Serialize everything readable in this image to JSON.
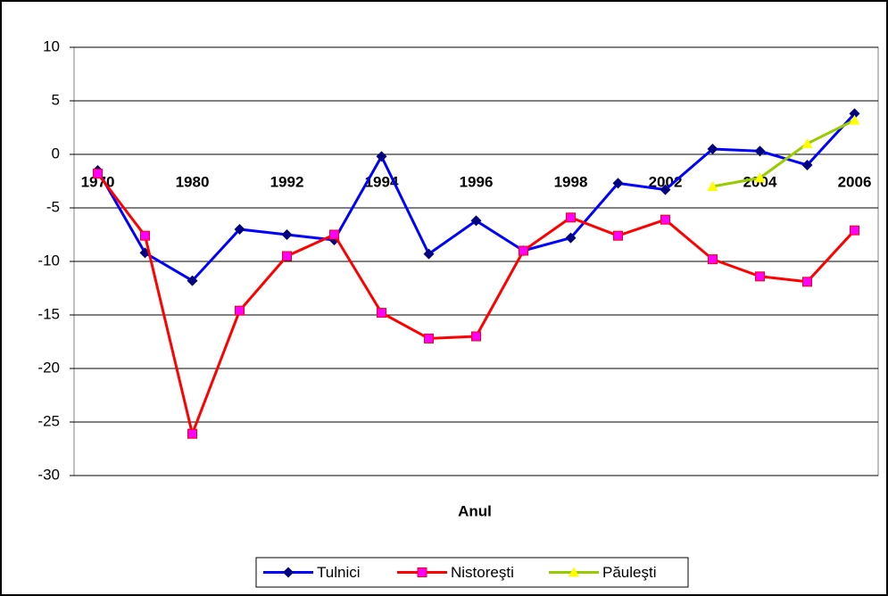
{
  "chart_data": {
    "type": "line",
    "xlabel": "Anul",
    "categories": [
      "1970",
      null,
      "1980",
      null,
      "1992",
      null,
      "1994",
      null,
      "1996",
      null,
      "1998",
      null,
      "2002",
      null,
      "2004",
      null,
      "2006"
    ],
    "series": [
      {
        "name": "Tulnici",
        "color": "#0000ff",
        "marker": "diamond",
        "marker_color": "#000080",
        "values": [
          -1.5,
          -9.2,
          -11.8,
          -7,
          -7.5,
          -8,
          -0.2,
          -9.3,
          -6.2,
          -9,
          -7.8,
          -2.7,
          -3.3,
          0.5,
          0.3,
          -1,
          3.8
        ]
      },
      {
        "name": "Nistoreşti",
        "color": "#ff0000",
        "marker": "square",
        "marker_color": "#ff00ff",
        "values": [
          -1.8,
          -7.6,
          -26.1,
          -14.6,
          -9.5,
          -7.5,
          -14.8,
          -17.2,
          -17,
          -9,
          -5.9,
          -7.6,
          -6.1,
          -9.8,
          -11.4,
          -11.9,
          -7.1
        ]
      },
      {
        "name": "Păuleşti",
        "color": "#99cc00",
        "marker": "triangle",
        "marker_color": "#ffff00",
        "values": [
          null,
          null,
          null,
          null,
          null,
          null,
          null,
          null,
          null,
          null,
          null,
          null,
          null,
          -3,
          -2.2,
          1,
          3.2
        ]
      }
    ],
    "ylim": [
      -30,
      10
    ],
    "yticks": [
      -30,
      -25,
      -20,
      -15,
      -10,
      -5,
      0,
      5,
      10
    ],
    "grid": true,
    "legend": "bottom"
  }
}
